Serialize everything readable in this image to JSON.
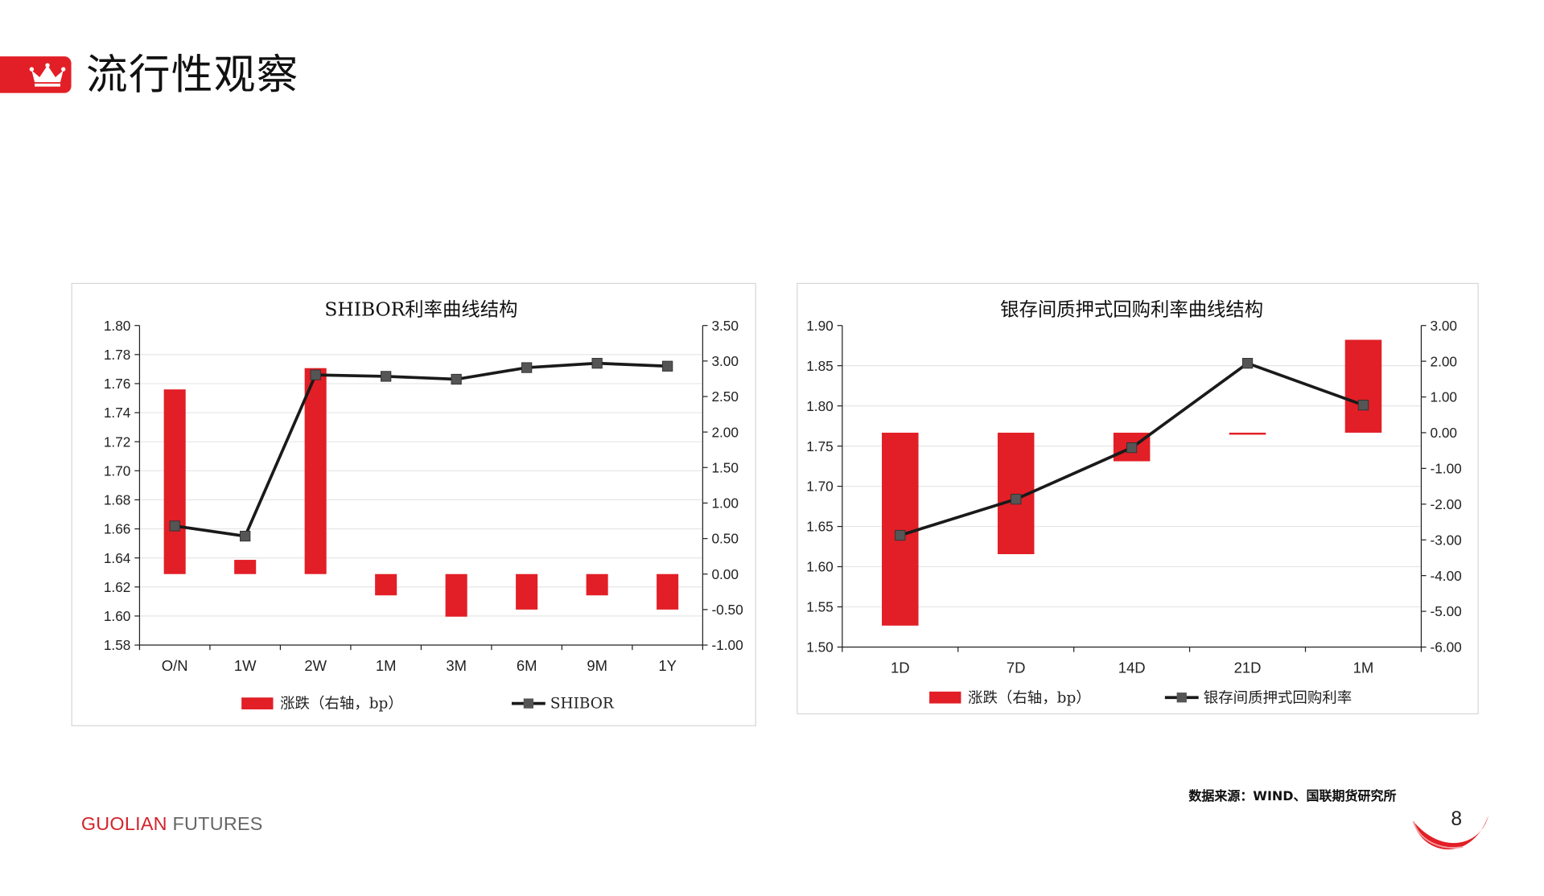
{
  "header": {
    "title": "流行性观察",
    "icon": "crown-icon",
    "accent_color": "#e21f26"
  },
  "chart_data": [
    {
      "type": "bar",
      "title": "SHIBOR利率曲线结构",
      "categories": [
        "O/N",
        "1W",
        "2W",
        "1M",
        "3M",
        "6M",
        "9M",
        "1Y"
      ],
      "y_left": {
        "min": 1.58,
        "max": 1.8,
        "step": 0.02,
        "ticks": [
          "1.80",
          "1.78",
          "1.76",
          "1.74",
          "1.72",
          "1.70",
          "1.68",
          "1.66",
          "1.64",
          "1.62",
          "1.60",
          "1.58"
        ]
      },
      "y_right": {
        "min": -1.0,
        "max": 3.5,
        "step": 0.5,
        "ticks": [
          "3.50",
          "3.00",
          "2.50",
          "2.00",
          "1.50",
          "1.00",
          "0.50",
          "0.00",
          "-0.50",
          "-1.00"
        ]
      },
      "series": [
        {
          "name": "涨跌（右轴，bp）",
          "kind": "bar",
          "axis": "right",
          "color": "#e21f26",
          "values": [
            2.6,
            0.2,
            2.9,
            -0.3,
            -0.6,
            -0.5,
            -0.3,
            -0.5
          ]
        },
        {
          "name": "SHIBOR",
          "kind": "line",
          "axis": "left",
          "color": "#1a1a1a",
          "marker_color": "#555555",
          "values": [
            1.662,
            1.655,
            1.766,
            1.765,
            1.763,
            1.771,
            1.774,
            1.772
          ]
        }
      ],
      "legend": "bottom",
      "grid": true
    },
    {
      "type": "bar",
      "title": "银存间质押式回购利率曲线结构",
      "categories": [
        "1D",
        "7D",
        "14D",
        "21D",
        "1M"
      ],
      "y_left": {
        "min": 1.5,
        "max": 1.9,
        "step": 0.05,
        "ticks": [
          "1.90",
          "1.85",
          "1.80",
          "1.75",
          "1.70",
          "1.65",
          "1.60",
          "1.55",
          "1.50"
        ]
      },
      "y_right": {
        "min": -6.0,
        "max": 3.0,
        "step": 1.0,
        "ticks": [
          "3.00",
          "2.00",
          "1.00",
          "0.00",
          "-1.00",
          "-2.00",
          "-3.00",
          "-4.00",
          "-5.00",
          "-6.00"
        ]
      },
      "series": [
        {
          "name": "涨跌（右轴，bp）",
          "kind": "bar",
          "axis": "right",
          "color": "#e21f26",
          "values": [
            -5.4,
            -3.4,
            -0.8,
            -0.05,
            2.6
          ]
        },
        {
          "name": "银存间质押式回购利率",
          "kind": "line",
          "axis": "left",
          "color": "#1a1a1a",
          "marker_color": "#555555",
          "values": [
            1.639,
            1.684,
            1.748,
            1.853,
            1.801
          ]
        }
      ],
      "legend": "bottom",
      "grid": true
    }
  ],
  "footer": {
    "source": "数据来源：WIND、国联期货研究所",
    "brand_part1": "GUOLIAN",
    "brand_part2": " FUTURES",
    "page_number": "8"
  }
}
